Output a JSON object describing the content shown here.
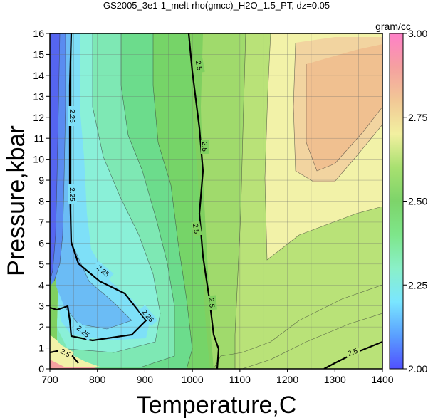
{
  "chart_data": {
    "type": "contour",
    "title": "GS2005_3e1-1_melt-rho(gmcc)_H2O_1.5_PT, dz=0.05",
    "xlabel": "Temperature,C",
    "ylabel": "Pressure,kbar",
    "xlim": [
      700,
      1400
    ],
    "ylim": [
      0,
      16
    ],
    "x_ticks": [
      "700",
      "800",
      "900",
      "1000",
      "1100",
      "1200",
      "1300",
      "1400"
    ],
    "y_ticks": [
      "0",
      "1",
      "2",
      "3",
      "4",
      "5",
      "6",
      "7",
      "8",
      "9",
      "10",
      "11",
      "12",
      "13",
      "14",
      "15",
      "16"
    ],
    "grid": true,
    "colorbar": {
      "unit": "gram/cc",
      "range": [
        2.0,
        3.0
      ],
      "tick_labels": [
        "2.00",
        "2.25",
        "2.50",
        "2.75",
        "3.00"
      ],
      "tick_values": [
        2.0,
        2.25,
        2.5,
        2.75,
        3.0
      ],
      "colors": [
        "#5050ff",
        "#5aa0ff",
        "#7ae6ff",
        "#8af0c8",
        "#7ee68a",
        "#7dd46a",
        "#a8e070",
        "#f2f0a0",
        "#f2c896",
        "#f5a0a0",
        "#ff80c8"
      ]
    },
    "contour_interval": 0.05,
    "labeled_contours": [
      {
        "value": "2.25"
      },
      {
        "value": "2.5"
      }
    ],
    "fill_bands": [
      {
        "range": [
          2.0,
          2.05
        ],
        "color": "#5565f0"
      },
      {
        "range": [
          2.05,
          2.15
        ],
        "color": "#5a8cf0"
      },
      {
        "range": [
          2.15,
          2.2
        ],
        "color": "#6bbcf5"
      },
      {
        "range": [
          2.2,
          2.25
        ],
        "color": "#7ee0f8"
      },
      {
        "range": [
          2.25,
          2.3
        ],
        "color": "#8af0d8"
      },
      {
        "range": [
          2.3,
          2.35
        ],
        "color": "#7ee8b4"
      },
      {
        "range": [
          2.35,
          2.4
        ],
        "color": "#6cdc8c"
      },
      {
        "range": [
          2.4,
          2.45
        ],
        "color": "#72d868"
      },
      {
        "range": [
          2.45,
          2.5
        ],
        "color": "#80d060"
      },
      {
        "range": [
          2.5,
          2.55
        ],
        "color": "#9ad968"
      },
      {
        "range": [
          2.55,
          2.6
        ],
        "color": "#b9e278"
      },
      {
        "range": [
          2.6,
          2.65
        ],
        "color": "#f2f2a8"
      },
      {
        "range": [
          2.65,
          2.7
        ],
        "color": "#f2d4a0"
      },
      {
        "range": [
          2.7,
          2.75
        ],
        "color": "#f0c090"
      }
    ]
  }
}
